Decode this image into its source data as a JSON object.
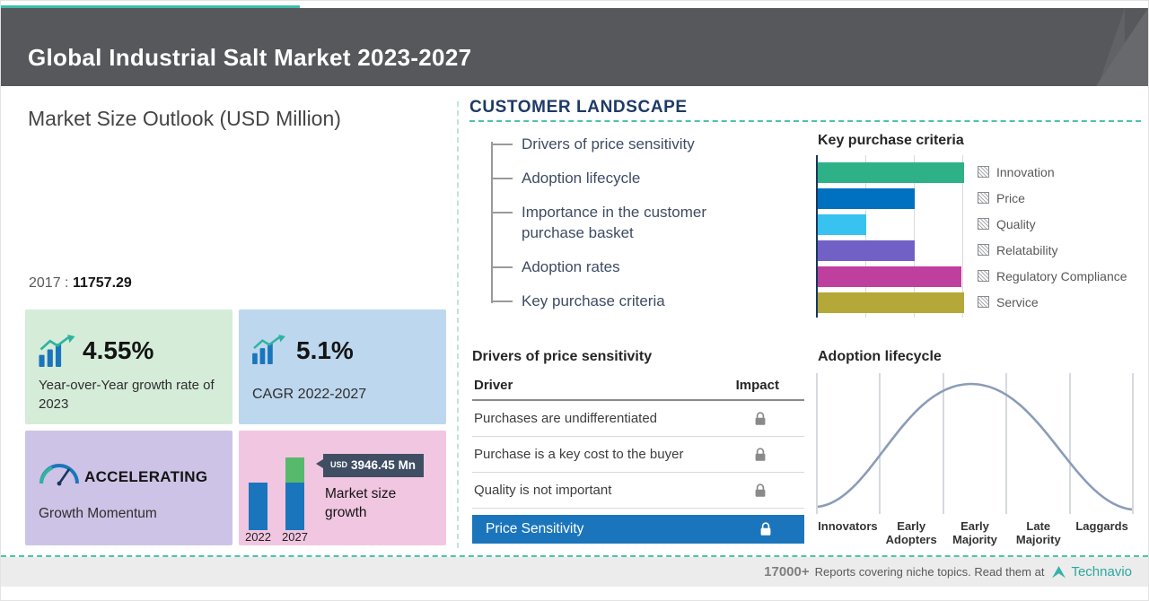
{
  "colors": {
    "teal_accent": "#3bbfab",
    "header_gray": "#57585c",
    "highlight_blue": "#1b75bc",
    "navy_heading": "#1e3a66"
  },
  "header": {
    "title": "Global Industrial Salt Market 2023-2027"
  },
  "market_size": {
    "title": "Market Size Outlook (USD Million)",
    "base_year": "2017",
    "base_separator": ":",
    "base_value": "11757.29",
    "cards": {
      "yoy": {
        "value": "4.55%",
        "label": "Year-over-Year growth rate of 2023"
      },
      "cagr": {
        "value": "5.1%",
        "label": "CAGR 2022-2027"
      },
      "momentum": {
        "value": "ACCELERATING",
        "label": "Growth Momentum"
      },
      "growth": {
        "badge_currency": "USD",
        "badge_value": "3946.45 Mn",
        "label": "Market size growth"
      }
    }
  },
  "customer_landscape": {
    "title": "CUSTOMER LANDSCAPE",
    "items": [
      "Drivers of price sensitivity",
      "Adoption lifecycle",
      "Importance in the customer purchase basket",
      "Adoption rates",
      "Key purchase criteria"
    ]
  },
  "key_purchase_criteria": {
    "title": "Key purchase criteria"
  },
  "price_sensitivity": {
    "title": "Drivers of price sensitivity",
    "columns": {
      "driver": "Driver",
      "impact": "Impact"
    },
    "rows": [
      "Purchases are undifferentiated",
      "Purchase is a key cost to the buyer",
      "Quality is not important"
    ],
    "highlight": "Price Sensitivity"
  },
  "adoption_lifecycle": {
    "title": "Adoption lifecycle"
  },
  "footer": {
    "count": "17000+",
    "text": "Reports covering niche topics. Read them at",
    "brand": "Technavio"
  },
  "chart_data": [
    {
      "type": "bar",
      "title": "Key purchase criteria",
      "orientation": "horizontal",
      "categories": [
        "Innovation",
        "Price",
        "Quality",
        "Relatability",
        "Regulatory Compliance",
        "Service"
      ],
      "values": [
        100,
        66,
        33,
        66,
        98,
        100
      ],
      "xlim": [
        0,
        100
      ],
      "x_note": "axis unlabeled; values estimated as percent of longest bar using gridlines",
      "colors": [
        "#2fb187",
        "#0070c0",
        "#38c2f0",
        "#7161c6",
        "#bf3f9e",
        "#b4a838"
      ],
      "grid": true,
      "legend_position": "right"
    },
    {
      "type": "bar",
      "title": "Market size growth",
      "categories": [
        "2022",
        "2027"
      ],
      "annotation": "USD 3946.45 Mn",
      "note": "bars unlabeled; 2027 bar carries a highlighted growth segment on top",
      "colors": [
        "#1b75bc",
        "#1b75bc"
      ],
      "growth_segment_color": "#57b96c"
    },
    {
      "type": "area",
      "title": "Adoption lifecycle",
      "shape": "bell-curve",
      "categories": [
        "Innovators",
        "Early Adopters",
        "Early Majority",
        "Late Majority",
        "Laggards"
      ],
      "grid": "vertical stage dividers",
      "curve_color": "#8b9cb8"
    }
  ]
}
